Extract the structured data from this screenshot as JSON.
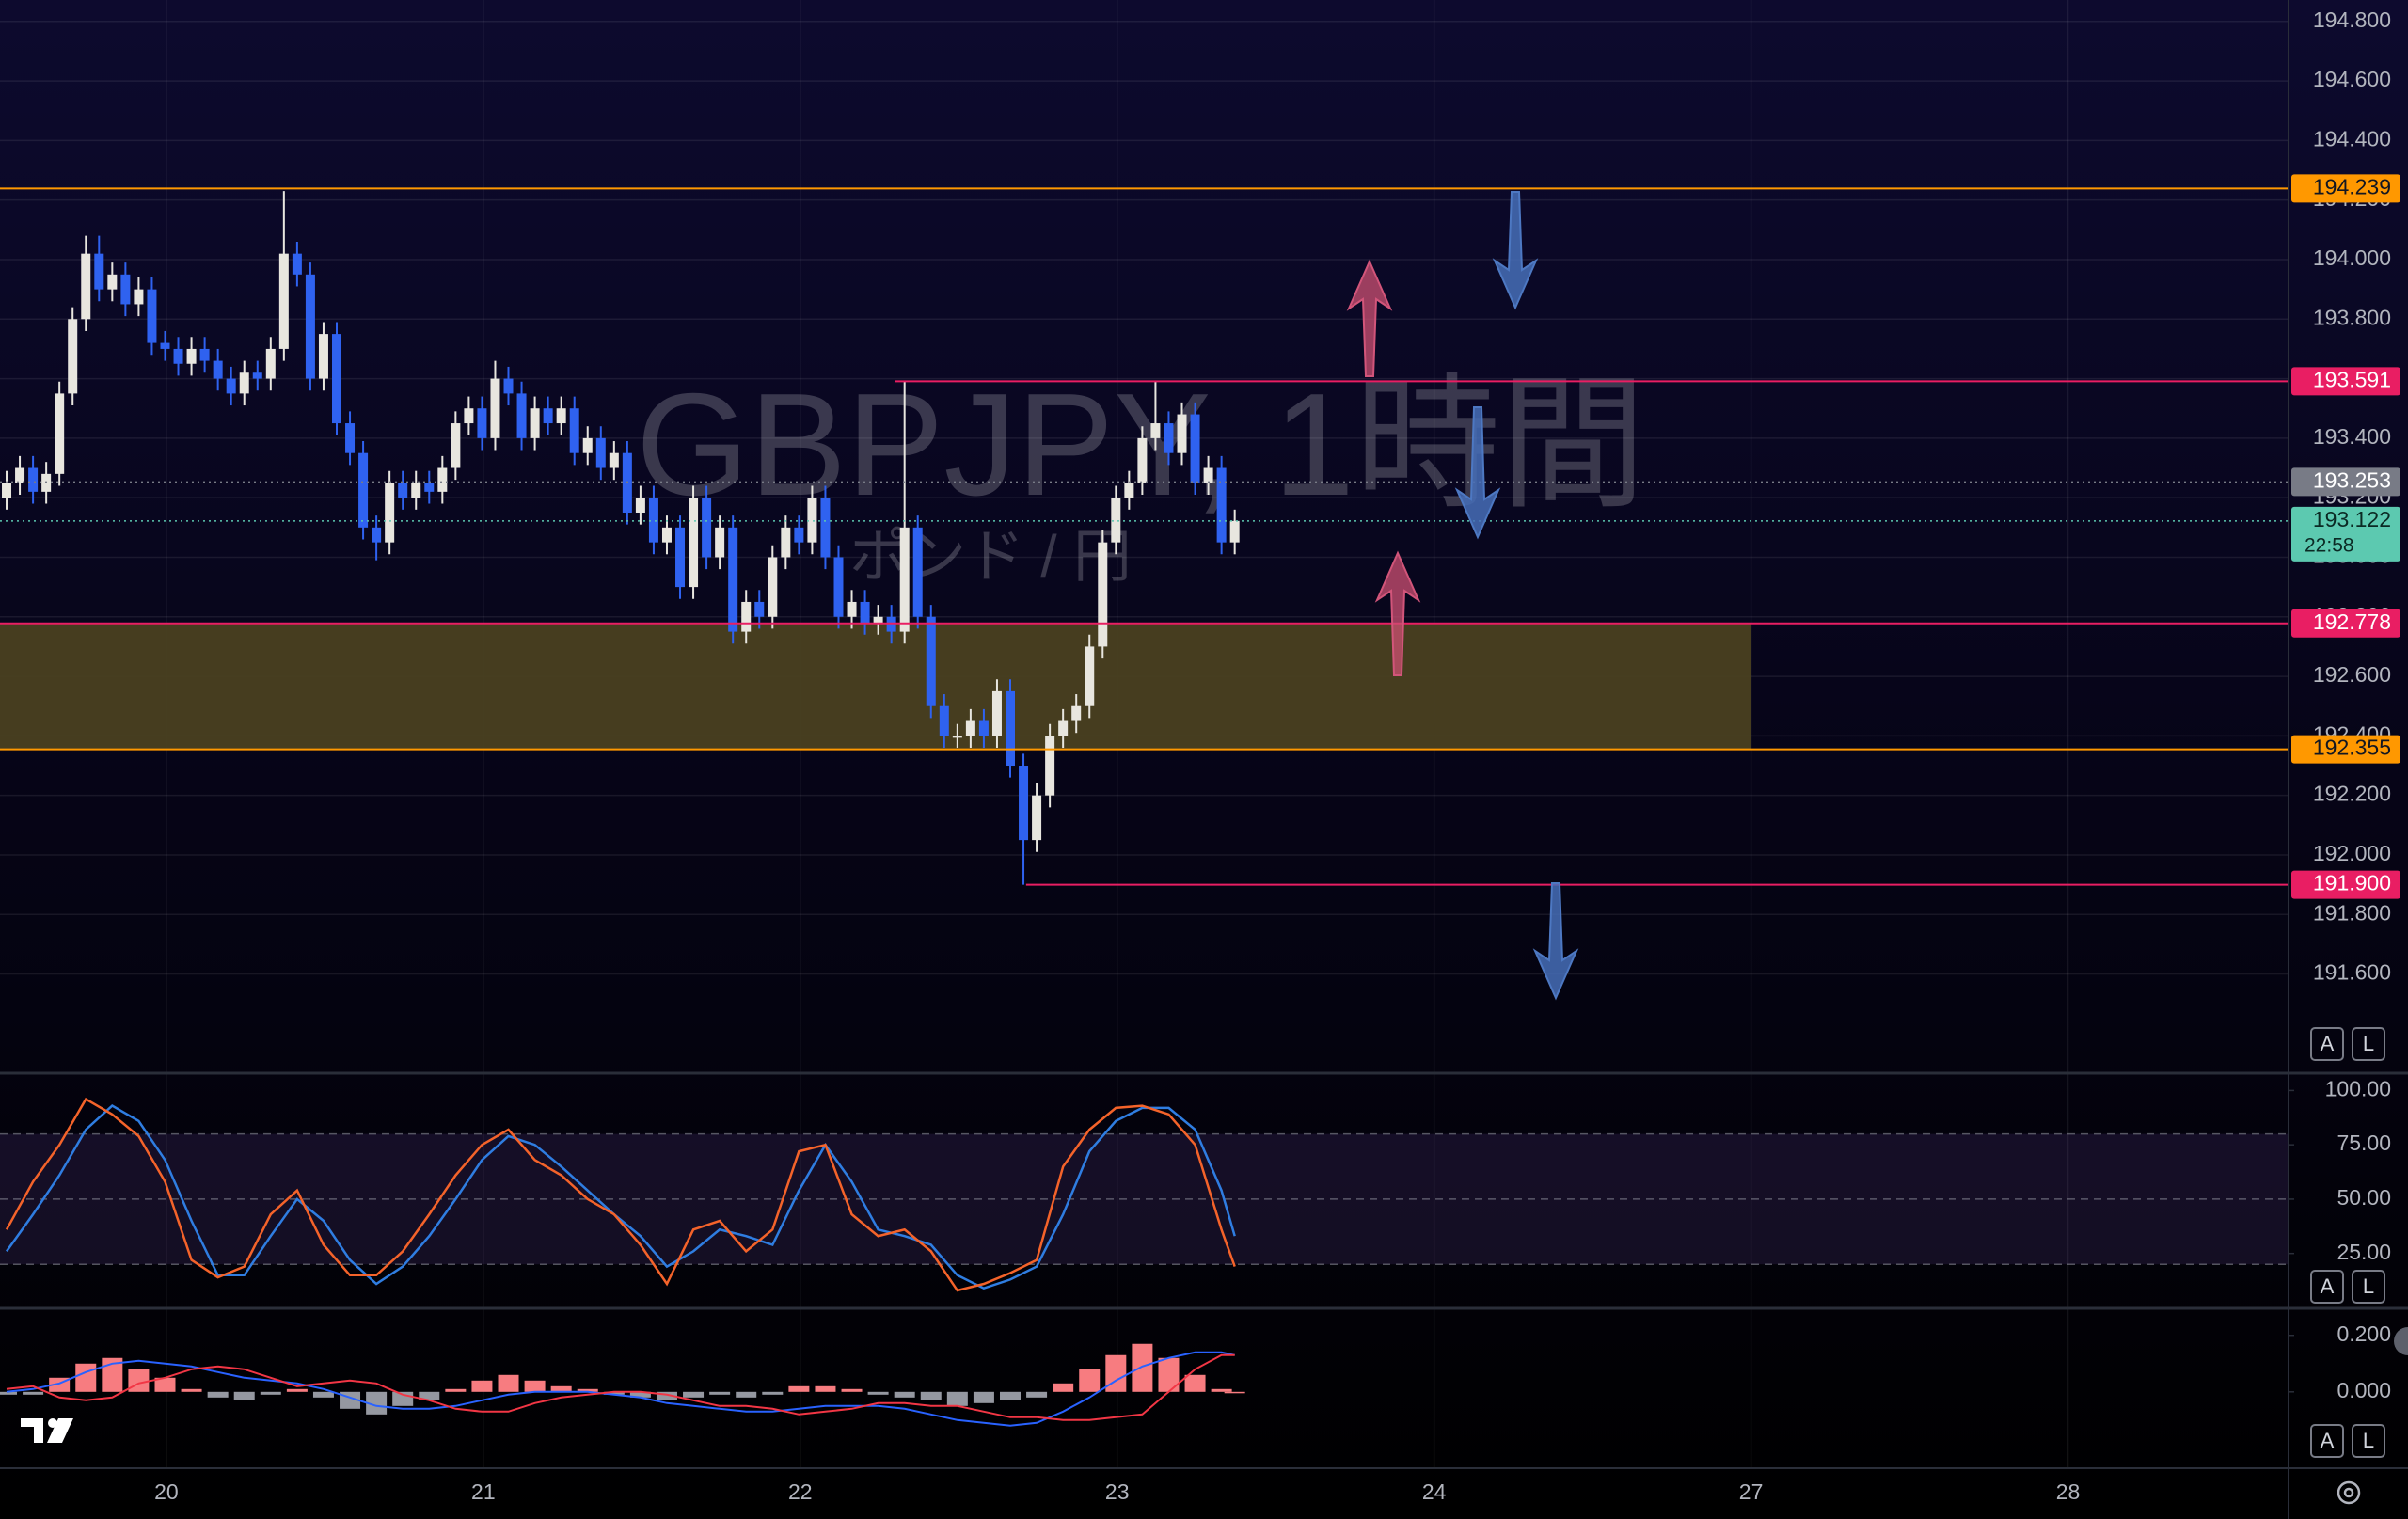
{
  "watermark": {
    "title": "GBPJPY, 1時間",
    "subtitle": "ポンド / 円"
  },
  "ui": {
    "auto": "A",
    "log": "L"
  },
  "chart_data": [
    {
      "type": "candlestick",
      "open": [
        193.2,
        193.25,
        193.3,
        193.22,
        193.28,
        193.55,
        193.8,
        194.02,
        193.9,
        193.95,
        193.85,
        193.9,
        193.72,
        193.7,
        193.65,
        193.7,
        193.66,
        193.6,
        193.55,
        193.62,
        193.6,
        193.7,
        194.02,
        193.95,
        193.6,
        193.75,
        193.45,
        193.35,
        193.1,
        193.05,
        193.25,
        193.2,
        193.25,
        193.22,
        193.3,
        193.45,
        193.5,
        193.4,
        193.6,
        193.55,
        193.4,
        193.5,
        193.45,
        193.5,
        193.35,
        193.4,
        193.3,
        193.35,
        193.15,
        193.2,
        193.05,
        193.1,
        192.9,
        193.2,
        193.0,
        193.1,
        192.75,
        192.85,
        192.8,
        193.0,
        193.1,
        193.05,
        193.2,
        193.0,
        192.8,
        192.85,
        192.78,
        192.8,
        192.75,
        193.1,
        192.8,
        192.5,
        192.4,
        192.4,
        192.45,
        192.4,
        192.55,
        192.3,
        192.05,
        192.2,
        192.4,
        192.45,
        192.5,
        192.7,
        193.05,
        193.2,
        193.25,
        193.4,
        193.45,
        193.35,
        193.48,
        193.25,
        193.3,
        193.05
      ],
      "high": [
        193.29,
        193.34,
        193.34,
        193.32,
        193.59,
        193.84,
        194.08,
        194.08,
        193.99,
        193.99,
        193.94,
        193.94,
        193.76,
        193.74,
        193.74,
        193.74,
        193.7,
        193.64,
        193.66,
        193.66,
        193.74,
        194.23,
        194.06,
        193.99,
        193.79,
        193.79,
        193.49,
        193.39,
        193.14,
        193.29,
        193.29,
        193.29,
        193.29,
        193.34,
        193.49,
        193.54,
        193.54,
        193.66,
        193.64,
        193.59,
        193.54,
        193.54,
        193.54,
        193.54,
        193.44,
        193.44,
        193.39,
        193.39,
        193.24,
        193.24,
        193.14,
        193.14,
        193.24,
        193.24,
        193.14,
        193.14,
        192.89,
        192.89,
        193.04,
        193.14,
        193.14,
        193.24,
        193.24,
        193.04,
        192.89,
        192.89,
        192.84,
        192.84,
        193.59,
        193.14,
        192.84,
        192.54,
        192.44,
        192.49,
        192.49,
        192.59,
        192.59,
        192.34,
        192.24,
        192.44,
        192.49,
        192.54,
        192.74,
        193.09,
        193.24,
        193.29,
        193.44,
        193.59,
        193.49,
        193.52,
        193.52,
        193.34,
        193.34,
        193.16
      ],
      "low": [
        193.16,
        193.21,
        193.18,
        193.18,
        193.24,
        193.51,
        193.76,
        193.86,
        193.86,
        193.81,
        193.81,
        193.68,
        193.66,
        193.61,
        193.61,
        193.62,
        193.56,
        193.51,
        193.51,
        193.56,
        193.56,
        193.66,
        193.91,
        193.56,
        193.56,
        193.41,
        193.31,
        193.06,
        192.99,
        193.01,
        193.16,
        193.16,
        193.18,
        193.18,
        193.26,
        193.41,
        193.36,
        193.36,
        193.51,
        193.36,
        193.36,
        193.41,
        193.41,
        193.31,
        193.31,
        193.26,
        193.26,
        193.11,
        193.11,
        193.01,
        193.01,
        192.86,
        192.86,
        192.96,
        192.96,
        192.71,
        192.71,
        192.76,
        192.76,
        192.96,
        193.01,
        193.01,
        192.96,
        192.76,
        192.76,
        192.74,
        192.74,
        192.71,
        192.71,
        192.76,
        192.46,
        192.36,
        192.36,
        192.36,
        192.36,
        192.36,
        192.26,
        191.9,
        192.01,
        192.16,
        192.36,
        192.41,
        192.46,
        192.66,
        193.01,
        193.16,
        193.21,
        193.36,
        193.31,
        193.31,
        193.21,
        193.21,
        193.01,
        193.01
      ],
      "close": [
        193.25,
        193.3,
        193.22,
        193.28,
        193.55,
        193.8,
        194.02,
        193.9,
        193.95,
        193.85,
        193.9,
        193.72,
        193.7,
        193.65,
        193.7,
        193.66,
        193.6,
        193.55,
        193.62,
        193.6,
        193.7,
        194.02,
        193.95,
        193.6,
        193.75,
        193.45,
        193.35,
        193.1,
        193.05,
        193.25,
        193.2,
        193.25,
        193.22,
        193.3,
        193.45,
        193.5,
        193.4,
        193.6,
        193.55,
        193.4,
        193.5,
        193.45,
        193.5,
        193.35,
        193.4,
        193.3,
        193.35,
        193.15,
        193.2,
        193.05,
        193.1,
        192.9,
        193.2,
        193.0,
        193.1,
        192.75,
        192.85,
        192.8,
        193.0,
        193.1,
        193.05,
        193.2,
        193.0,
        192.8,
        192.85,
        192.78,
        192.8,
        192.75,
        193.1,
        192.8,
        192.5,
        192.4,
        192.4,
        192.45,
        192.4,
        192.55,
        192.3,
        192.05,
        192.2,
        192.4,
        192.45,
        192.5,
        192.7,
        193.05,
        193.2,
        193.25,
        193.4,
        193.45,
        193.35,
        193.48,
        193.25,
        193.3,
        193.05,
        193.122
      ],
      "up_color": "#e8e6df",
      "down_color": "#2f62f0",
      "ylim": [
        191.27,
        194.872
      ],
      "yticks": [
        {
          "value": 194.8,
          "label": "194.800"
        },
        {
          "value": 194.6,
          "label": "194.600"
        },
        {
          "value": 194.4,
          "label": "194.400"
        },
        {
          "value": 194.2,
          "label": "194.200"
        },
        {
          "value": 194.0,
          "label": "194.000"
        },
        {
          "value": 193.8,
          "label": "193.800"
        },
        {
          "value": 193.6,
          "label": "193.600"
        },
        {
          "value": 193.4,
          "label": "193.400"
        },
        {
          "value": 193.2,
          "label": "193.200"
        },
        {
          "value": 193.0,
          "label": "193.000"
        },
        {
          "value": 192.8,
          "label": "192.800"
        },
        {
          "value": 192.6,
          "label": "192.600"
        },
        {
          "value": 192.4,
          "label": "192.400"
        },
        {
          "value": 192.2,
          "label": "192.200"
        },
        {
          "value": 192.0,
          "label": "192.000"
        },
        {
          "value": 191.8,
          "label": "191.800"
        },
        {
          "value": 191.6,
          "label": "191.600"
        }
      ],
      "grid": true,
      "zone": {
        "from": 192.355,
        "to": 192.778,
        "x_end": 132.6,
        "color": "#4a4020"
      },
      "levels": [
        {
          "value": 194.239,
          "color": "#ff9800",
          "text_color": "#131722"
        },
        {
          "value": 193.591,
          "color": "#e91e63",
          "text_color": "#ffffff",
          "x_start": 67.8
        },
        {
          "value": 192.778,
          "color": "#e91e63",
          "text_color": "#ffffff"
        },
        {
          "value": 192.355,
          "color": "#ff9800",
          "text_color": "#131722"
        },
        {
          "value": 191.9,
          "label": "191.900",
          "color": "#e91e63",
          "text_color": "#ffffff",
          "x_start": 77.7
        }
      ],
      "previous": {
        "value": 193.253,
        "color": "#787b86"
      },
      "last": {
        "value": 193.122,
        "countdown": "22:58",
        "color": "#5cc9b0"
      }
    },
    {
      "type": "line",
      "x": [
        0.5,
        2.5,
        4.5,
        6.5,
        8.5,
        10.5,
        12.5,
        14.5,
        16.5,
        18.5,
        20.5,
        22.5,
        24.5,
        26.5,
        28.5,
        30.5,
        32.5,
        34.5,
        36.5,
        38.5,
        40.5,
        42.5,
        44.5,
        46.5,
        48.5,
        50.5,
        52.5,
        54.5,
        56.5,
        58.5,
        60.5,
        62.5,
        64.5,
        66.5,
        68.5,
        70.5,
        72.5,
        74.5,
        76.5,
        78.5,
        80.5,
        82.5,
        84.5,
        86.5,
        88.5,
        90.5,
        92.5,
        93.5
      ],
      "series": [
        {
          "color": "#2f7de1",
          "values": [
            26,
            43,
            61,
            82,
            93,
            86,
            68,
            40,
            15,
            15,
            33,
            50,
            40,
            22,
            11,
            19,
            33,
            50,
            68,
            79,
            75,
            65,
            54,
            43,
            33,
            19,
            26,
            36,
            33,
            29,
            54,
            75,
            58,
            36,
            33,
            29,
            15,
            9,
            13,
            19,
            43,
            72,
            86,
            92,
            92,
            82,
            54,
            33
          ]
        },
        {
          "color": "#f4632a",
          "values": [
            36,
            58,
            75,
            96,
            89,
            79,
            58,
            22,
            14,
            19,
            43,
            54,
            29,
            15,
            15,
            26,
            43,
            61,
            75,
            82,
            68,
            61,
            50,
            43,
            29,
            11,
            36,
            40,
            26,
            36,
            72,
            75,
            43,
            33,
            36,
            26,
            8,
            11,
            16,
            22,
            65,
            82,
            92,
            93,
            89,
            75,
            36,
            19
          ]
        }
      ],
      "bands": {
        "upper": 80,
        "middle": 50,
        "lower": 20,
        "color": "#7e57c2"
      },
      "ylim": [
        0.2,
        107.1
      ],
      "yticks": [
        {
          "value": 100,
          "label": "100.00"
        },
        {
          "value": 75,
          "label": "75.00"
        },
        {
          "value": 50,
          "label": "50.00"
        },
        {
          "value": 25,
          "label": "25.00"
        }
      ],
      "grid": false
    },
    {
      "type": "bar",
      "x": [
        0.5,
        2.5,
        4.5,
        6.5,
        8.5,
        10.5,
        12.5,
        14.5,
        16.5,
        18.5,
        20.5,
        22.5,
        24.5,
        26.5,
        28.5,
        30.5,
        32.5,
        34.5,
        36.5,
        38.5,
        40.5,
        42.5,
        44.5,
        46.5,
        48.5,
        50.5,
        52.5,
        54.5,
        56.5,
        58.5,
        60.5,
        62.5,
        64.5,
        66.5,
        68.5,
        70.5,
        72.5,
        74.5,
        76.5,
        78.5,
        80.5,
        82.5,
        84.5,
        86.5,
        88.5,
        90.5,
        92.5,
        93.5
      ],
      "values": [
        -0.01,
        -0.01,
        0.05,
        0.1,
        0.12,
        0.08,
        0.05,
        0.01,
        -0.02,
        -0.03,
        -0.01,
        0.01,
        -0.02,
        -0.06,
        -0.08,
        -0.05,
        -0.03,
        0.01,
        0.04,
        0.06,
        0.04,
        0.02,
        0.01,
        -0.01,
        -0.02,
        -0.03,
        -0.02,
        -0.01,
        -0.02,
        -0.01,
        0.02,
        0.02,
        0.01,
        -0.01,
        -0.02,
        -0.03,
        -0.05,
        -0.04,
        -0.03,
        -0.02,
        0.03,
        0.08,
        0.13,
        0.17,
        0.12,
        0.06,
        0.01,
        0.0
      ],
      "pos_color": "#f77c80",
      "neg_color": "#9598a1",
      "series": [
        {
          "color": "#2962ff",
          "values": [
            0.0,
            0.01,
            0.03,
            0.07,
            0.1,
            0.11,
            0.1,
            0.09,
            0.07,
            0.05,
            0.04,
            0.03,
            0.01,
            -0.02,
            -0.05,
            -0.06,
            -0.06,
            -0.05,
            -0.03,
            -0.01,
            0.0,
            0.0,
            0.0,
            -0.01,
            -0.02,
            -0.04,
            -0.05,
            -0.06,
            -0.07,
            -0.07,
            -0.06,
            -0.05,
            -0.05,
            -0.05,
            -0.06,
            -0.08,
            -0.1,
            -0.11,
            -0.12,
            -0.11,
            -0.07,
            -0.02,
            0.04,
            0.09,
            0.12,
            0.14,
            0.14,
            0.13
          ]
        },
        {
          "color": "#f23645",
          "values": [
            0.01,
            0.02,
            -0.02,
            -0.03,
            -0.02,
            0.03,
            0.05,
            0.08,
            0.09,
            0.08,
            0.05,
            0.02,
            0.03,
            0.04,
            0.03,
            -0.01,
            -0.03,
            -0.06,
            -0.07,
            -0.07,
            -0.04,
            -0.02,
            -0.01,
            0.0,
            0.0,
            -0.01,
            -0.03,
            -0.05,
            -0.05,
            -0.06,
            -0.08,
            -0.07,
            -0.06,
            -0.04,
            -0.04,
            -0.05,
            -0.05,
            -0.07,
            -0.09,
            -0.09,
            -0.1,
            -0.1,
            -0.09,
            -0.08,
            0.0,
            0.08,
            0.13,
            0.13
          ]
        }
      ],
      "ylim": [
        -0.267,
        0.289
      ],
      "yticks": [
        {
          "value": 0.2,
          "label": "0.200"
        },
        {
          "value": 0,
          "label": "0.000"
        }
      ],
      "grid": false,
      "xlim": [
        0,
        173.3
      ],
      "xticks": [
        {
          "value": 12.6,
          "label": "20"
        },
        {
          "value": 36.6,
          "label": "21"
        },
        {
          "value": 60.6,
          "label": "22"
        },
        {
          "value": 84.6,
          "label": "23"
        },
        {
          "value": 108.6,
          "label": "24"
        },
        {
          "value": 132.6,
          "label": "27"
        },
        {
          "value": 156.6,
          "label": "28"
        }
      ]
    }
  ]
}
